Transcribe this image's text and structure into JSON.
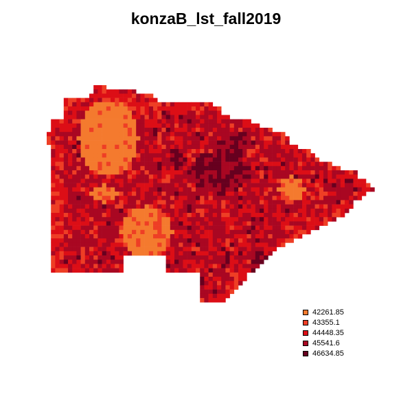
{
  "title": "konzaB_lst_fall2019",
  "legend": {
    "entries": [
      {
        "label": "42261.85",
        "color": "#F47A2E"
      },
      {
        "label": "43355.1",
        "color": "#EE3E25"
      },
      {
        "label": "44448.35",
        "color": "#DC0E16"
      },
      {
        "label": "45541.6",
        "color": "#A90722"
      },
      {
        "label": "46634.85",
        "color": "#67001F"
      }
    ]
  }
}
